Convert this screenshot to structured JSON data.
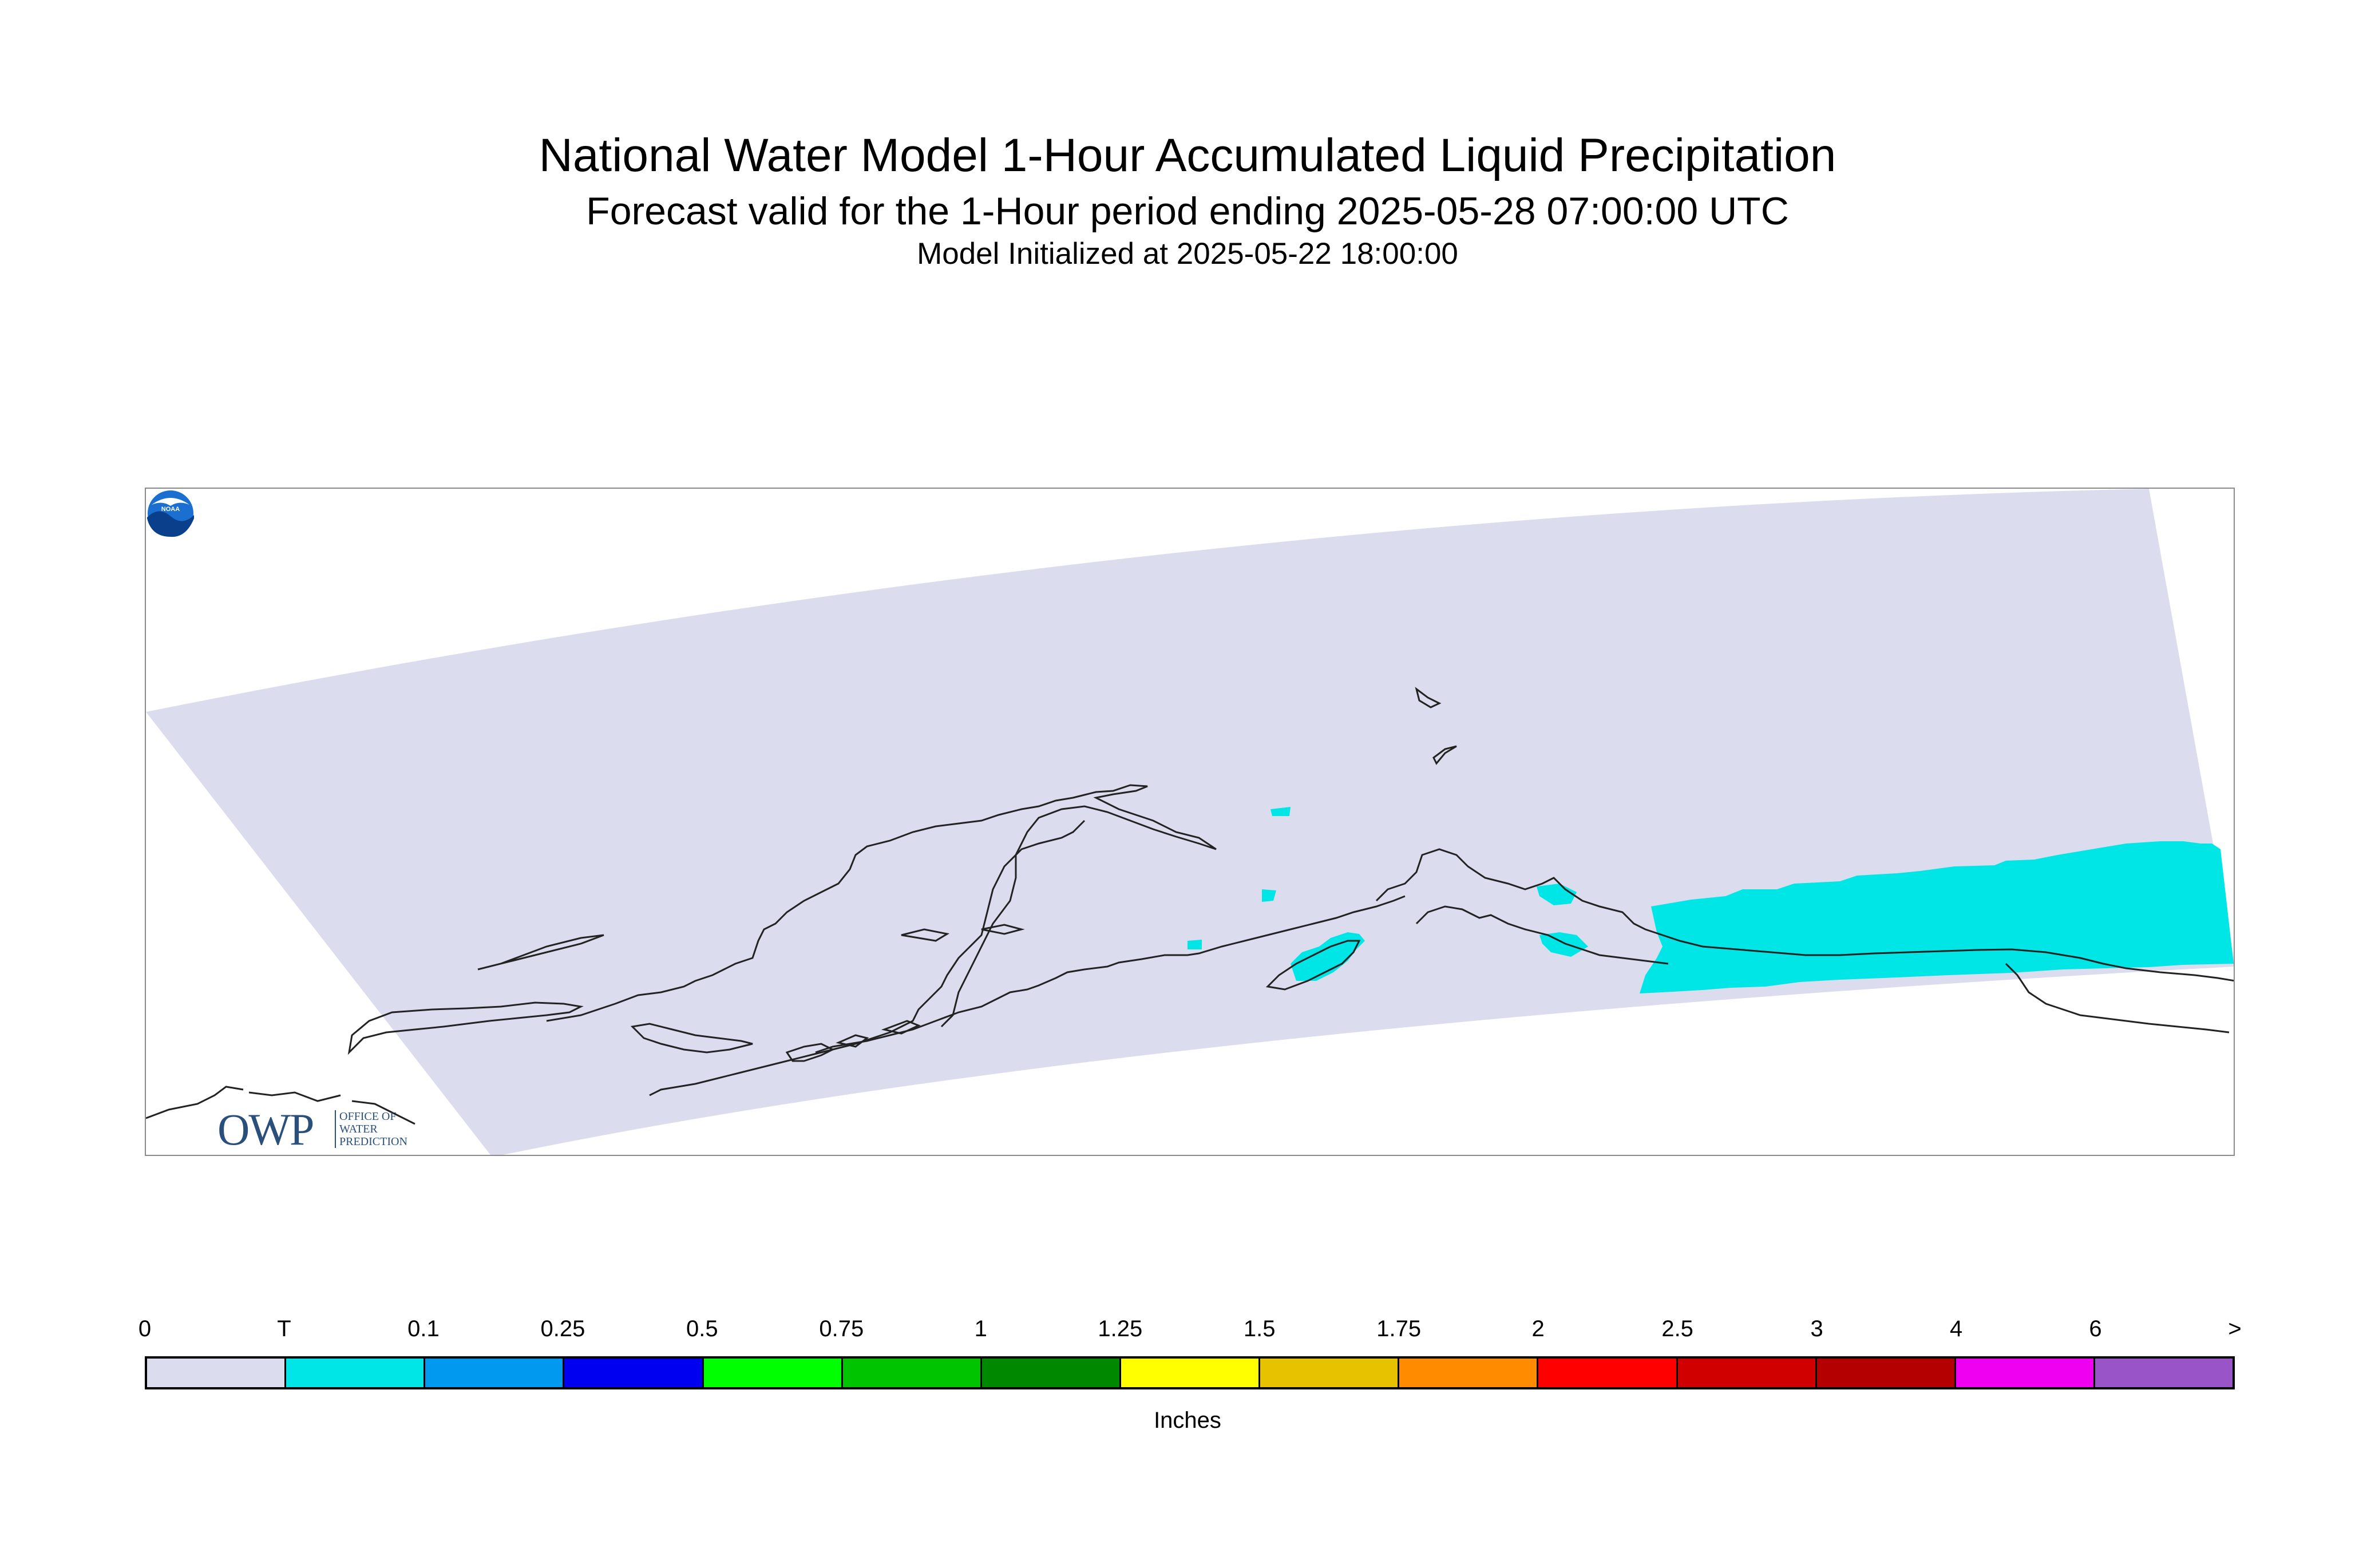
{
  "titles": {
    "main": "National Water Model 1-Hour Accumulated Liquid Precipitation",
    "forecast": "Forecast valid for the 1-Hour period ending 2025-05-28 07:00:00 UTC",
    "init": "Model Initialized at 2025-05-22 18:00:00"
  },
  "map": {
    "domain_fill_color": "#dcdcef",
    "precip_color": "#00e5e5",
    "coastline_color": "#222222",
    "precip_category": "T"
  },
  "logos": {
    "owp": {
      "letters": "OWP",
      "line1": "OFFICE OF",
      "line2": "WATER",
      "line3": "PREDICTION"
    },
    "noaa": {
      "text": "NOAA"
    }
  },
  "legend": {
    "ticks": [
      "0",
      "T",
      "0.1",
      "0.25",
      "0.5",
      "0.75",
      "1",
      "1.25",
      "1.5",
      "1.75",
      "2",
      "2.5",
      "3",
      "4",
      "6",
      ">"
    ],
    "colors": [
      "#dcdcef",
      "#00e5e5",
      "#0099f0",
      "#0000f0",
      "#00ff00",
      "#00c400",
      "#008800",
      "#ffff00",
      "#e6c200",
      "#ff8c00",
      "#ff0000",
      "#d00000",
      "#b40000",
      "#f000f0",
      "#9955c8"
    ],
    "units": "Inches"
  }
}
